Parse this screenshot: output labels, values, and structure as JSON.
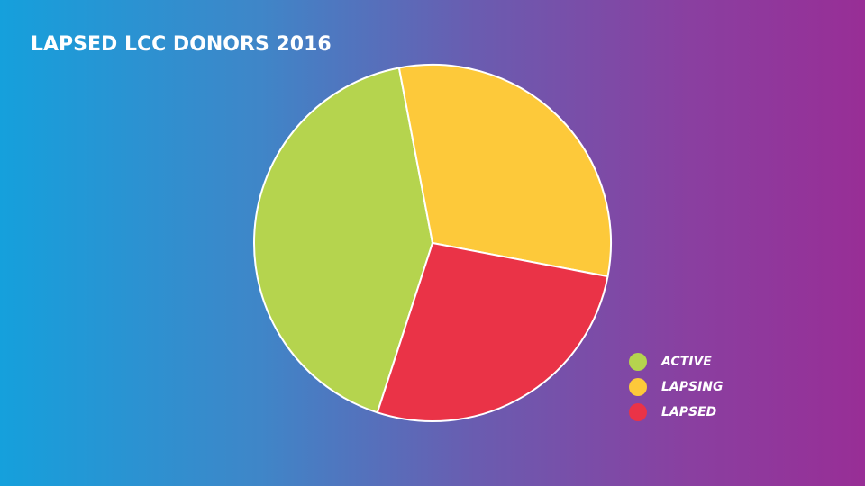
{
  "chart_data": {
    "type": "pie",
    "title": "LAPSED LCC DONORS 2016",
    "categories": [
      "ACTIVE",
      "LAPSING",
      "LAPSED"
    ],
    "values": [
      42,
      31,
      27
    ],
    "colors": [
      "#b5d44e",
      "#fdc93a",
      "#ea3347"
    ],
    "legend": "bottom-right"
  }
}
